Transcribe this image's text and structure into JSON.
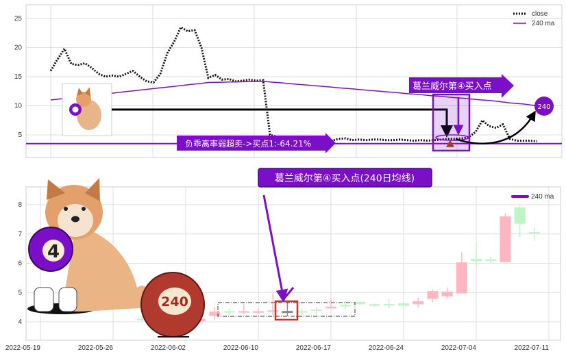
{
  "chart_data": [
    {
      "type": "line",
      "yticks": [
        5,
        10,
        15,
        20,
        25
      ],
      "ylim": [
        1.5,
        27.5
      ],
      "grid": true,
      "legend": {
        "placement": "top-right",
        "entries": [
          "close",
          "240 ma"
        ]
      },
      "series": [
        {
          "name": "close",
          "style": "dotted",
          "color": "#111111",
          "values": [
            16,
            18,
            19.8,
            17.2,
            17,
            17.3,
            16.5,
            15.5,
            15,
            15.2,
            15,
            15.5,
            16,
            15,
            14.2,
            14,
            15.5,
            19,
            21,
            23.5,
            22.8,
            23,
            20,
            14.8,
            15.3,
            14.5,
            14.6,
            14.2,
            14.3,
            14.5,
            14.3,
            14.4,
            5,
            4.7,
            4.6,
            4.6,
            4.5,
            4.2,
            4.0,
            4.2,
            4.0,
            4.0,
            4.3,
            4.4,
            4.1,
            4.2,
            4.1,
            4.2,
            4.2,
            4.1,
            4.1,
            4.2,
            4.1,
            4.0,
            4.1,
            4.0,
            4.1,
            4.2,
            4.3,
            4.3,
            4.4,
            4.6,
            5.5,
            7.5,
            6.5,
            6.2,
            6.8,
            4.3,
            4.0,
            4.0,
            4.0,
            3.9
          ]
        },
        {
          "name": "240 ma",
          "color": "#7B0FC8",
          "values": [
            11,
            11.13,
            11.26,
            11.39,
            11.52,
            11.65,
            11.78,
            11.91,
            12.04,
            12.17,
            12.3,
            12.43,
            12.56,
            12.69,
            12.82,
            12.95,
            13.08,
            13.21,
            13.34,
            13.47,
            13.6,
            13.73,
            13.86,
            14.0,
            14.03,
            14.05,
            14.08,
            14.1,
            14.13,
            14.15,
            14.18,
            14.2,
            14.1,
            14.0,
            13.9,
            13.8,
            13.7,
            13.6,
            13.5,
            13.4,
            13.3,
            13.2,
            13.1,
            13.0,
            12.9,
            12.8,
            12.7,
            12.6,
            12.5,
            12.4,
            12.3,
            12.2,
            12.1,
            12.0,
            11.9,
            11.8,
            11.7,
            11.6,
            11.5,
            11.4,
            11.3,
            11.2,
            11.1,
            11.0,
            10.9,
            10.8,
            10.65,
            10.5,
            10.4,
            10.3,
            10.15,
            10.0
          ]
        }
      ],
      "hline": {
        "value": 3.5,
        "color": "#7B0FC8"
      },
      "annotations": {
        "oversold_label": "负乖离率弱超卖->买点1:-64.21%",
        "buy_point_label": "葛兰威尔第④买入点",
        "ma_circle_label": "240"
      }
    },
    {
      "type": "candlestick",
      "title": "葛兰威尔第④买入点(240日均线)",
      "yticks": [
        4,
        5,
        6,
        7,
        8
      ],
      "ylim": [
        3.4,
        8.6
      ],
      "grid": true,
      "legend": {
        "placement": "top-right",
        "entries": [
          "240 ma"
        ],
        "color": "#7B0FC8"
      },
      "xticks": [
        "2022-05-19",
        "2022-05-26",
        "2022-06-02",
        "2022-06-10",
        "2022-06-17",
        "2022-06-24",
        "2022-07-04",
        "2022-07-11"
      ],
      "up_color": "#FFB6C1",
      "down_color": "#BDF5C4",
      "highlight_color": "#888888",
      "candles": [
        {
          "i": 7,
          "o": 4.1,
          "h": 4.17,
          "l": 4.0,
          "c": 4.08
        },
        {
          "i": 11,
          "o": 4.02,
          "h": 4.12,
          "l": 3.98,
          "c": 4.1
        },
        {
          "i": 12,
          "o": 4.2,
          "h": 4.51,
          "l": 4.08,
          "c": 4.35
        },
        {
          "i": 13,
          "o": 4.36,
          "h": 4.46,
          "l": 4.23,
          "c": 4.35
        },
        {
          "i": 14,
          "o": 4.34,
          "h": 4.62,
          "l": 4.27,
          "c": 4.36
        },
        {
          "i": 15,
          "o": 4.31,
          "h": 4.46,
          "l": 4.23,
          "c": 4.36
        },
        {
          "i": 16,
          "o": 4.35,
          "h": 4.97,
          "l": 4.23,
          "c": 4.39
        },
        {
          "i": 17,
          "o": 4.37,
          "h": 4.66,
          "l": 4.19,
          "c": 4.3,
          "highlight": true
        },
        {
          "i": 18,
          "o": 4.36,
          "h": 4.46,
          "l": 4.23,
          "c": 4.35
        },
        {
          "i": 19,
          "o": 4.42,
          "h": 4.49,
          "l": 4.23,
          "c": 4.41
        },
        {
          "i": 20,
          "o": 4.46,
          "h": 4.82,
          "l": 4.46,
          "c": 4.52
        },
        {
          "i": 21,
          "o": 4.57,
          "h": 4.7,
          "l": 4.44,
          "c": 4.54
        },
        {
          "i": 22,
          "o": 4.68,
          "h": 4.7,
          "l": 4.58,
          "c": 4.6
        },
        {
          "i": 23,
          "o": 4.6,
          "h": 4.62,
          "l": 4.52,
          "c": 4.55
        },
        {
          "i": 24,
          "o": 4.61,
          "h": 4.77,
          "l": 4.46,
          "c": 4.6
        },
        {
          "i": 25,
          "o": 4.63,
          "h": 4.66,
          "l": 4.52,
          "c": 4.55
        },
        {
          "i": 26,
          "o": 4.6,
          "h": 4.82,
          "l": 4.49,
          "c": 4.7
        },
        {
          "i": 27,
          "o": 4.78,
          "h": 5.11,
          "l": 4.66,
          "c": 5.05
        },
        {
          "i": 28,
          "o": 4.87,
          "h": 5.17,
          "l": 4.82,
          "c": 5.03
        },
        {
          "i": 29,
          "o": 4.97,
          "h": 6.37,
          "l": 4.97,
          "c": 6.03
        },
        {
          "i": 30,
          "o": 6.15,
          "h": 6.73,
          "l": 5.87,
          "c": 6.08
        },
        {
          "i": 31,
          "o": 6.13,
          "h": 6.23,
          "l": 5.99,
          "c": 6.08
        },
        {
          "i": 32,
          "o": 6.04,
          "h": 7.72,
          "l": 6.04,
          "c": 7.6
        },
        {
          "i": 33,
          "o": 7.91,
          "h": 7.98,
          "l": 6.9,
          "c": 7.35
        },
        {
          "i": 34,
          "o": 7.06,
          "h": 7.23,
          "l": 6.77,
          "c": 7.02
        }
      ]
    }
  ]
}
